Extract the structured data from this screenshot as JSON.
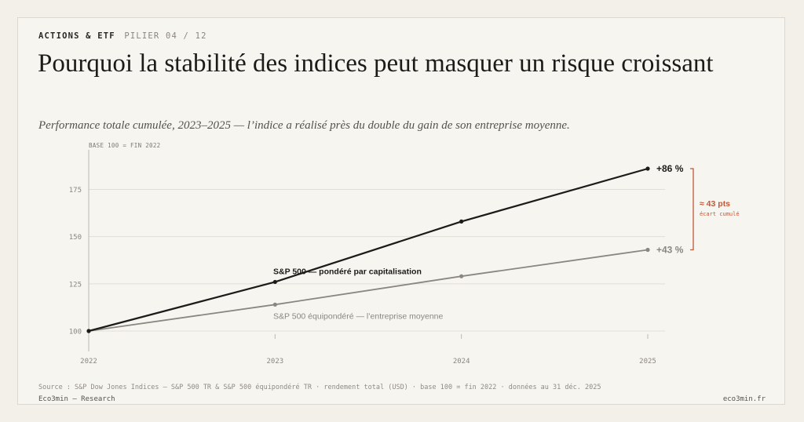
{
  "header": {
    "category": "ACTIONS & ETF",
    "pillar": "PILIER 04 / 12",
    "title": "Pourquoi la stabilité des indices peut masquer un risque croissant",
    "subtitle": "Performance totale cumulée, 2023–2025 — l’indice a réalisé près du double du gain de son entreprise moyenne."
  },
  "chart_data": {
    "type": "line",
    "y_note": "BASE 100 = FIN 2022",
    "x": [
      "2022",
      "2023",
      "2024",
      "2025"
    ],
    "ylim": [
      100,
      186
    ],
    "yticks": [
      100,
      125,
      150,
      175
    ],
    "grid": true,
    "series": [
      {
        "name": "S&P 500 — pondéré par capitalisation",
        "values": [
          100,
          126,
          158,
          186
        ],
        "color": "#1c1b19",
        "end_label": "+86 %"
      },
      {
        "name": "S&P 500 équipondéré — l’entreprise moyenne",
        "values": [
          100,
          114,
          129,
          143
        ],
        "color": "#8a8781",
        "end_label": "+43 %"
      }
    ],
    "annotation": {
      "label": "≈ 43 pts",
      "sublabel": "écart cumulé",
      "color": "#c0583a"
    }
  },
  "footer": {
    "source": "Source : S&P Dow Jones Indices — S&P 500 TR & S&P 500 équipondéré TR · rendement total (USD) · base 100 = fin 2022 · données au 31 déc. 2025",
    "brand": "Eco3min — Research",
    "site": "eco3min.fr"
  }
}
